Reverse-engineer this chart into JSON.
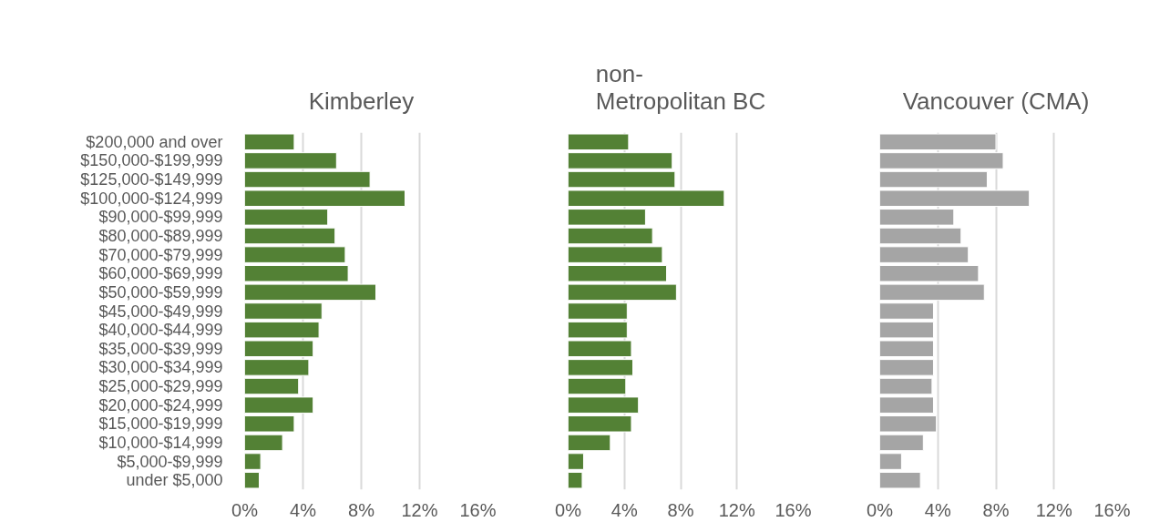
{
  "chart_data": [
    {
      "type": "bar",
      "orientation": "horizontal",
      "title": "Kimberley",
      "categories": [
        "$200,000 and over",
        "$150,000-$199,999",
        "$125,000-$149,999",
        "$100,000-$124,999",
        "$90,000-$99,999",
        "$80,000-$89,999",
        "$70,000-$79,999",
        "$60,000-$69,999",
        "$50,000-$59,999",
        "$45,000-$49,999",
        "$40,000-$44,999",
        "$35,000-$39,999",
        "$30,000-$34,999",
        "$25,000-$29,999",
        "$20,000-$24,999",
        "$15,000-$19,999",
        "$10,000-$14,999",
        "$5,000-$9,999",
        "under $5,000"
      ],
      "series": [
        {
          "color": "#538135",
          "values": [
            3.4,
            6.3,
            8.6,
            11.0,
            5.7,
            6.2,
            6.9,
            7.1,
            9.0,
            5.3,
            5.1,
            4.7,
            4.4,
            3.7,
            4.7,
            3.4,
            2.6,
            1.1,
            1.0
          ]
        }
      ],
      "xlim": [
        0,
        16
      ],
      "xticks": [
        {
          "value": 0,
          "label": "0%"
        },
        {
          "value": 4,
          "label": "4%"
        },
        {
          "value": 8,
          "label": "8%"
        },
        {
          "value": 12,
          "label": "12%"
        },
        {
          "value": 16,
          "label": "16%"
        }
      ],
      "grid": "x"
    },
    {
      "type": "bar",
      "orientation": "horizontal",
      "title": "non-Metropolitan BC",
      "categories": [
        null,
        null,
        null,
        null,
        null,
        null,
        null,
        null,
        null,
        null,
        null,
        null,
        null,
        null,
        null,
        null,
        null,
        null,
        null
      ],
      "series": [
        {
          "color": "#538135",
          "values": [
            4.3,
            7.4,
            7.6,
            11.1,
            5.5,
            6.0,
            6.7,
            7.0,
            7.7,
            4.2,
            4.2,
            4.5,
            4.6,
            4.1,
            5.0,
            4.5,
            3.0,
            1.1,
            1.0
          ]
        }
      ],
      "xlim": [
        0,
        16
      ],
      "xticks": [
        {
          "value": 0,
          "label": "0%"
        },
        {
          "value": 4,
          "label": "4%"
        },
        {
          "value": 8,
          "label": "8%"
        },
        {
          "value": 12,
          "label": "12%"
        },
        {
          "value": 16,
          "label": "16%"
        }
      ],
      "grid": "x",
      "tick_labels": "x"
    },
    {
      "type": "bar",
      "orientation": "horizontal",
      "title": "Vancouver (CMA)",
      "categories": [
        null,
        null,
        null,
        null,
        null,
        null,
        null,
        null,
        null,
        null,
        null,
        null,
        null,
        null,
        null,
        null,
        null,
        null,
        null
      ],
      "series": [
        {
          "color": "#a5a5a5",
          "values": [
            8.0,
            8.5,
            7.4,
            10.3,
            5.1,
            5.6,
            6.1,
            6.8,
            7.2,
            3.7,
            3.7,
            3.7,
            3.7,
            3.6,
            3.7,
            3.9,
            3.0,
            1.5,
            2.8
          ]
        }
      ],
      "xlim": [
        0,
        16
      ],
      "xticks": [
        {
          "value": 0,
          "label": "0%"
        },
        {
          "value": 4,
          "label": "4%"
        },
        {
          "value": 8,
          "label": "8%"
        },
        {
          "value": 12,
          "label": "12%"
        },
        {
          "value": 16,
          "label": "16%"
        }
      ],
      "grid": "x",
      "tick_labels": "x"
    }
  ]
}
